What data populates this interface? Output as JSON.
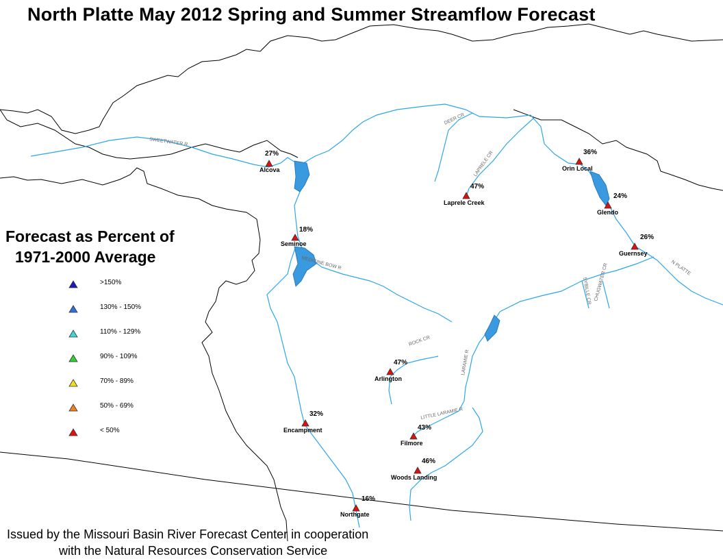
{
  "title": "North Platte May 2012 Spring and Summer Streamflow Forecast",
  "legend": {
    "title_line1": "Forecast as Percent of",
    "title_line2": "1971-2000 Average",
    "classes": [
      {
        "label": ">150%",
        "color": "#1a1ab8"
      },
      {
        "label": "130% - 150%",
        "color": "#2f6fd6"
      },
      {
        "label": "110% - 129%",
        "color": "#3fd6d6"
      },
      {
        "label": "90% - 109%",
        "color": "#2fd02f"
      },
      {
        "label": "70% - 89%",
        "color": "#f0e020"
      },
      {
        "label": "50% - 69%",
        "color": "#f08020"
      },
      {
        "label": "< 50%",
        "color": "#e01010"
      }
    ]
  },
  "stations": [
    {
      "name": "Alcova",
      "percent": "27%"
    },
    {
      "name": "Seminoe",
      "percent": "18%"
    },
    {
      "name": "Laprele Creek",
      "percent": "47%"
    },
    {
      "name": "Orin Local",
      "percent": "36%"
    },
    {
      "name": "Glendo",
      "percent": "24%"
    },
    {
      "name": "Guernsey",
      "percent": "26%"
    },
    {
      "name": "Arlington",
      "percent": "47%"
    },
    {
      "name": "Encampment",
      "percent": "32%"
    },
    {
      "name": "Filmore",
      "percent": "43%"
    },
    {
      "name": "Woods Landing",
      "percent": "46%"
    },
    {
      "name": "Northgate",
      "percent": "16%"
    }
  ],
  "river_labels": [
    "SWEETWATER R",
    "DEER CR",
    "LAPRELE CR",
    "MEDICINE BOW R",
    "ROCK CR",
    "LARAMIE R",
    "LITTLE LARAMIE R",
    "SYBILLE CR",
    "CHUGWATER CR",
    "N PLATTE"
  ],
  "footer_line1": "Issued by the Missouri Basin River Forecast Center in cooperation",
  "footer_line2": "with the Natural Resources Conservation Service",
  "colors": {
    "river": "#2aa6e8",
    "reservoir": "#3a9ae0",
    "boundary": "#000000",
    "below_50": "#e01010"
  }
}
